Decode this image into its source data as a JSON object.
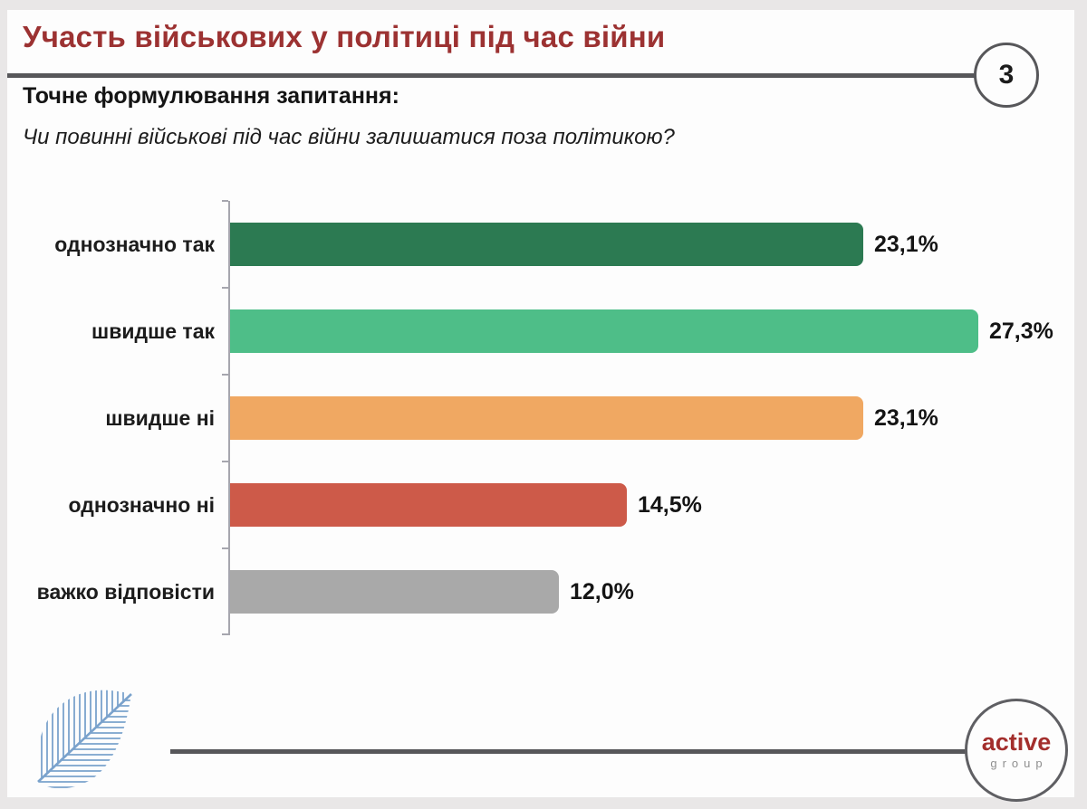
{
  "page_number": "3",
  "header": {
    "title": "Участь військових у політиці під час війни"
  },
  "question": {
    "heading": "Точне формулювання запитання:",
    "text": "Чи повинні військові під час війни залишатися поза політикою?"
  },
  "chart_data": {
    "type": "bar",
    "orientation": "horizontal",
    "title": "",
    "xlabel": "",
    "ylabel": "",
    "categories": [
      "однозначно так",
      "швидше так",
      "швидше ні",
      "однозначно ні",
      "важко відповісти"
    ],
    "values": [
      23.1,
      27.3,
      23.1,
      14.5,
      12.0
    ],
    "value_labels": [
      "23,1%",
      "27,3%",
      "23,1%",
      "14,5%",
      "12,0%"
    ],
    "bar_colors": [
      "#2c7a52",
      "#4ebe88",
      "#f0a862",
      "#cd5a49",
      "#a9a9a9"
    ],
    "axis": {
      "x_ticks_visible": false,
      "y_axis_line": true,
      "gridlines": false
    },
    "value_label_position": "end-of-bar"
  },
  "footer": {
    "logo": {
      "line1": "active",
      "line2": "group"
    }
  },
  "colors": {
    "title_accent": "#9c3232",
    "rule_gray": "#57575a",
    "logo_red": "#a32e2c",
    "leaf_blue": "#7aa2cc",
    "frame_gray": "#e9e7e7"
  }
}
